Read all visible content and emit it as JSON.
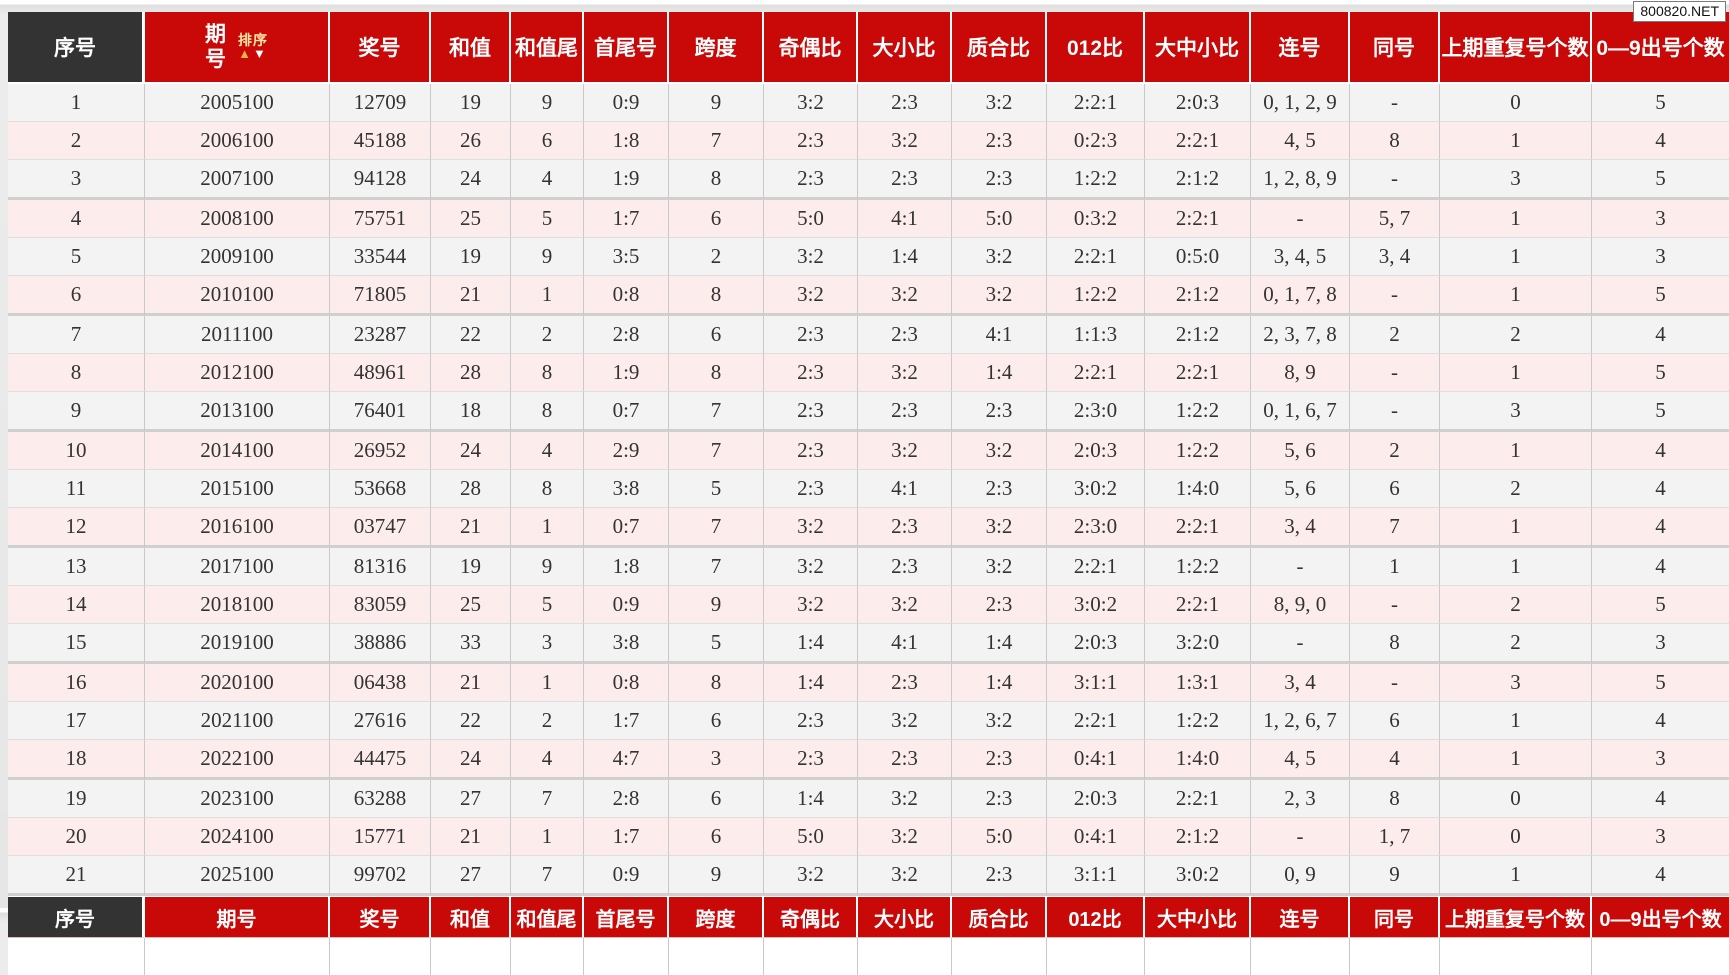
{
  "badge": {
    "text": "800820.NET"
  },
  "colors": {
    "header_red": "#c90808",
    "header_dark": "#333333",
    "row_gray": "#f3f3f3",
    "row_pink": "#fdecec",
    "winning_col_bg": "#ffffff",
    "sort_label_color": "#ffe9a8",
    "sort_up_arrow_color": "#eab34a"
  },
  "table": {
    "columns": [
      {
        "key": "index",
        "label": "序号"
      },
      {
        "key": "period",
        "label": "期号"
      },
      {
        "key": "winning-number",
        "label": "奖号"
      },
      {
        "key": "sum",
        "label": "和值"
      },
      {
        "key": "sum-tail",
        "label": "和值尾"
      },
      {
        "key": "first-last",
        "label": "首尾号"
      },
      {
        "key": "span",
        "label": "跨度"
      },
      {
        "key": "odd-even-ratio",
        "label": "奇偶比"
      },
      {
        "key": "big-small-ratio",
        "label": "大小比"
      },
      {
        "key": "prime-composite",
        "label": "质合比"
      },
      {
        "key": "zero-one-two",
        "label": "012比"
      },
      {
        "key": "big-mid-small",
        "label": "大中小比"
      },
      {
        "key": "consecutive",
        "label": "连号"
      },
      {
        "key": "same-number",
        "label": "同号"
      },
      {
        "key": "repeat-count",
        "label": "上期重复号个数"
      },
      {
        "key": "digit-count",
        "label": "0—9出号个数"
      }
    ],
    "sort_control": {
      "label": "排序",
      "up": "▲",
      "down": "▼"
    },
    "rows": [
      [
        "1",
        "2005100",
        "12709",
        "19",
        "9",
        "0:9",
        "9",
        "3:2",
        "2:3",
        "3:2",
        "2:2:1",
        "2:0:3",
        "0, 1, 2, 9",
        "-",
        "0",
        "5"
      ],
      [
        "2",
        "2006100",
        "45188",
        "26",
        "6",
        "1:8",
        "7",
        "2:3",
        "3:2",
        "2:3",
        "0:2:3",
        "2:2:1",
        "4, 5",
        "8",
        "1",
        "4"
      ],
      [
        "3",
        "2007100",
        "94128",
        "24",
        "4",
        "1:9",
        "8",
        "2:3",
        "2:3",
        "2:3",
        "1:2:2",
        "2:1:2",
        "1, 2, 8, 9",
        "-",
        "3",
        "5"
      ],
      [
        "4",
        "2008100",
        "75751",
        "25",
        "5",
        "1:7",
        "6",
        "5:0",
        "4:1",
        "5:0",
        "0:3:2",
        "2:2:1",
        "-",
        "5, 7",
        "1",
        "3"
      ],
      [
        "5",
        "2009100",
        "33544",
        "19",
        "9",
        "3:5",
        "2",
        "3:2",
        "1:4",
        "3:2",
        "2:2:1",
        "0:5:0",
        "3, 4, 5",
        "3, 4",
        "1",
        "3"
      ],
      [
        "6",
        "2010100",
        "71805",
        "21",
        "1",
        "0:8",
        "8",
        "3:2",
        "3:2",
        "3:2",
        "1:2:2",
        "2:1:2",
        "0, 1, 7, 8",
        "-",
        "1",
        "5"
      ],
      [
        "7",
        "2011100",
        "23287",
        "22",
        "2",
        "2:8",
        "6",
        "2:3",
        "2:3",
        "4:1",
        "1:1:3",
        "2:1:2",
        "2, 3, 7, 8",
        "2",
        "2",
        "4"
      ],
      [
        "8",
        "2012100",
        "48961",
        "28",
        "8",
        "1:9",
        "8",
        "2:3",
        "3:2",
        "1:4",
        "2:2:1",
        "2:2:1",
        "8, 9",
        "-",
        "1",
        "5"
      ],
      [
        "9",
        "2013100",
        "76401",
        "18",
        "8",
        "0:7",
        "7",
        "2:3",
        "2:3",
        "2:3",
        "2:3:0",
        "1:2:2",
        "0, 1, 6, 7",
        "-",
        "3",
        "5"
      ],
      [
        "10",
        "2014100",
        "26952",
        "24",
        "4",
        "2:9",
        "7",
        "2:3",
        "3:2",
        "3:2",
        "2:0:3",
        "1:2:2",
        "5, 6",
        "2",
        "1",
        "4"
      ],
      [
        "11",
        "2015100",
        "53668",
        "28",
        "8",
        "3:8",
        "5",
        "2:3",
        "4:1",
        "2:3",
        "3:0:2",
        "1:4:0",
        "5, 6",
        "6",
        "2",
        "4"
      ],
      [
        "12",
        "2016100",
        "03747",
        "21",
        "1",
        "0:7",
        "7",
        "3:2",
        "2:3",
        "3:2",
        "2:3:0",
        "2:2:1",
        "3, 4",
        "7",
        "1",
        "4"
      ],
      [
        "13",
        "2017100",
        "81316",
        "19",
        "9",
        "1:8",
        "7",
        "3:2",
        "2:3",
        "3:2",
        "2:2:1",
        "1:2:2",
        "-",
        "1",
        "1",
        "4"
      ],
      [
        "14",
        "2018100",
        "83059",
        "25",
        "5",
        "0:9",
        "9",
        "3:2",
        "3:2",
        "2:3",
        "3:0:2",
        "2:2:1",
        "8, 9, 0",
        "-",
        "2",
        "5"
      ],
      [
        "15",
        "2019100",
        "38886",
        "33",
        "3",
        "3:8",
        "5",
        "1:4",
        "4:1",
        "1:4",
        "2:0:3",
        "3:2:0",
        "-",
        "8",
        "2",
        "3"
      ],
      [
        "16",
        "2020100",
        "06438",
        "21",
        "1",
        "0:8",
        "8",
        "1:4",
        "2:3",
        "1:4",
        "3:1:1",
        "1:3:1",
        "3, 4",
        "-",
        "3",
        "5"
      ],
      [
        "17",
        "2021100",
        "27616",
        "22",
        "2",
        "1:7",
        "6",
        "2:3",
        "3:2",
        "3:2",
        "2:2:1",
        "1:2:2",
        "1, 2, 6, 7",
        "6",
        "1",
        "4"
      ],
      [
        "18",
        "2022100",
        "44475",
        "24",
        "4",
        "4:7",
        "3",
        "2:3",
        "2:3",
        "2:3",
        "0:4:1",
        "1:4:0",
        "4, 5",
        "4",
        "1",
        "3"
      ],
      [
        "19",
        "2023100",
        "63288",
        "27",
        "7",
        "2:8",
        "6",
        "1:4",
        "3:2",
        "2:3",
        "2:0:3",
        "2:2:1",
        "2, 3",
        "8",
        "0",
        "4"
      ],
      [
        "20",
        "2024100",
        "15771",
        "21",
        "1",
        "1:7",
        "6",
        "5:0",
        "3:2",
        "5:0",
        "0:4:1",
        "2:1:2",
        "-",
        "1, 7",
        "0",
        "3"
      ],
      [
        "21",
        "2025100",
        "99702",
        "27",
        "7",
        "0:9",
        "9",
        "3:2",
        "3:2",
        "2:3",
        "3:1:1",
        "3:0:2",
        "0, 9",
        "9",
        "1",
        "4"
      ]
    ]
  }
}
